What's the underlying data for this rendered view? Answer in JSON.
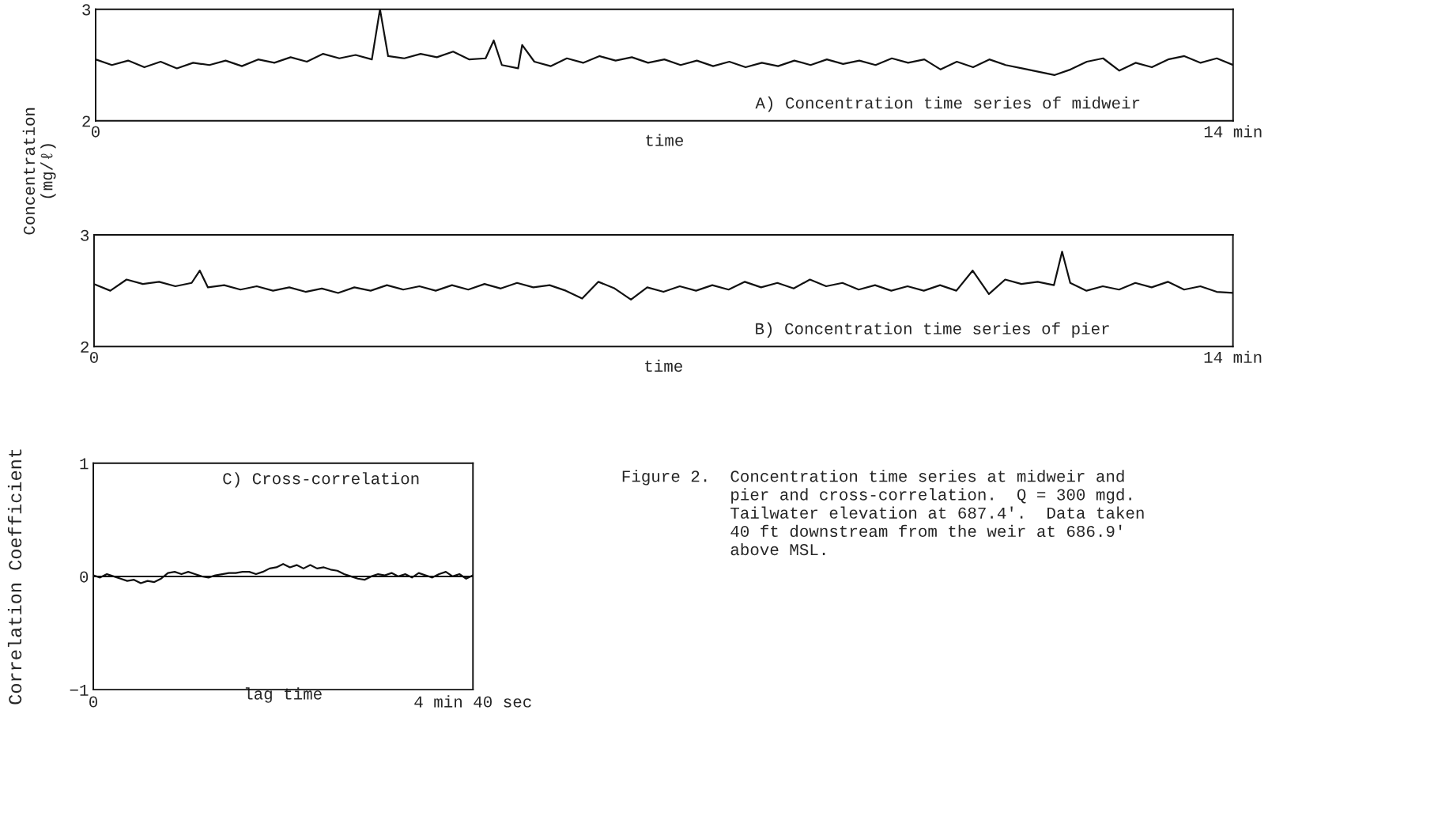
{
  "chart_data": [
    {
      "type": "line",
      "xlabel": "time",
      "ylabel": "Concentration\n(mg/ℓ)",
      "annotations": [
        "A) Concentration time series of midweir"
      ],
      "xlim": [
        0,
        14
      ],
      "xticks": [
        0,
        {
          "value": 14,
          "label": "14 min"
        }
      ],
      "ylim": [
        2,
        3
      ],
      "yticks": [
        2,
        3
      ],
      "grid": false,
      "legend": false,
      "marker": "none",
      "line_style": "solid",
      "series": [
        {
          "color": "#111111",
          "x": [
            0,
            0.2,
            0.4,
            0.6,
            0.8,
            1.0,
            1.2,
            1.4,
            1.6,
            1.8,
            2.0,
            2.2,
            2.4,
            2.6,
            2.8,
            3.0,
            3.2,
            3.4,
            3.5,
            3.6,
            3.8,
            4.0,
            4.2,
            4.4,
            4.6,
            4.8,
            4.9,
            5.0,
            5.2,
            5.25,
            5.4,
            5.6,
            5.8,
            6.0,
            6.2,
            6.4,
            6.6,
            6.8,
            7.0,
            7.2,
            7.4,
            7.6,
            7.8,
            8.0,
            8.2,
            8.4,
            8.6,
            8.8,
            9.0,
            9.2,
            9.4,
            9.6,
            9.8,
            10.0,
            10.2,
            10.4,
            10.6,
            10.8,
            11.0,
            11.2,
            11.4,
            11.6,
            11.8,
            12.0,
            12.2,
            12.4,
            12.6,
            12.8,
            13.0,
            13.2,
            13.4,
            13.6,
            13.8,
            14.0
          ],
          "values": [
            2.55,
            2.5,
            2.54,
            2.48,
            2.53,
            2.47,
            2.52,
            2.5,
            2.54,
            2.49,
            2.55,
            2.52,
            2.57,
            2.53,
            2.6,
            2.56,
            2.59,
            2.55,
            3.0,
            2.58,
            2.56,
            2.6,
            2.57,
            2.62,
            2.55,
            2.56,
            2.72,
            2.5,
            2.47,
            2.68,
            2.53,
            2.49,
            2.56,
            2.52,
            2.58,
            2.54,
            2.57,
            2.52,
            2.55,
            2.5,
            2.54,
            2.49,
            2.53,
            2.48,
            2.52,
            2.49,
            2.54,
            2.5,
            2.55,
            2.51,
            2.54,
            2.5,
            2.56,
            2.52,
            2.55,
            2.46,
            2.53,
            2.48,
            2.55,
            2.5,
            2.47,
            2.44,
            2.41,
            2.46,
            2.53,
            2.56,
            2.45,
            2.52,
            2.48,
            2.55,
            2.58,
            2.52,
            2.56,
            2.5
          ]
        }
      ]
    },
    {
      "type": "line",
      "xlabel": "time",
      "annotations": [
        "B) Concentration time series of pier"
      ],
      "xlim": [
        0,
        14
      ],
      "xticks": [
        0,
        {
          "value": 14,
          "label": "14 min"
        }
      ],
      "ylim": [
        2,
        3
      ],
      "yticks": [
        2,
        3
      ],
      "grid": false,
      "legend": false,
      "marker": "none",
      "line_style": "solid",
      "series": [
        {
          "color": "#111111",
          "x": [
            0,
            0.2,
            0.4,
            0.6,
            0.8,
            1.0,
            1.2,
            1.3,
            1.4,
            1.6,
            1.8,
            2.0,
            2.2,
            2.4,
            2.6,
            2.8,
            3.0,
            3.2,
            3.4,
            3.6,
            3.8,
            4.0,
            4.2,
            4.4,
            4.6,
            4.8,
            5.0,
            5.2,
            5.4,
            5.6,
            5.8,
            6.0,
            6.2,
            6.4,
            6.6,
            6.8,
            7.0,
            7.2,
            7.4,
            7.6,
            7.8,
            8.0,
            8.2,
            8.4,
            8.6,
            8.8,
            9.0,
            9.2,
            9.4,
            9.6,
            9.8,
            10.0,
            10.2,
            10.4,
            10.6,
            10.8,
            11.0,
            11.2,
            11.4,
            11.6,
            11.8,
            11.9,
            12.0,
            12.2,
            12.4,
            12.6,
            12.8,
            13.0,
            13.2,
            13.4,
            13.6,
            13.8,
            14.0
          ],
          "values": [
            2.56,
            2.5,
            2.6,
            2.56,
            2.58,
            2.54,
            2.57,
            2.68,
            2.53,
            2.55,
            2.51,
            2.54,
            2.5,
            2.53,
            2.49,
            2.52,
            2.48,
            2.53,
            2.5,
            2.55,
            2.51,
            2.54,
            2.5,
            2.55,
            2.51,
            2.56,
            2.52,
            2.57,
            2.53,
            2.55,
            2.5,
            2.43,
            2.58,
            2.52,
            2.42,
            2.53,
            2.49,
            2.54,
            2.5,
            2.55,
            2.51,
            2.58,
            2.53,
            2.57,
            2.52,
            2.6,
            2.54,
            2.57,
            2.51,
            2.55,
            2.5,
            2.54,
            2.5,
            2.55,
            2.5,
            2.68,
            2.47,
            2.6,
            2.56,
            2.58,
            2.55,
            2.85,
            2.57,
            2.5,
            2.54,
            2.51,
            2.57,
            2.53,
            2.58,
            2.51,
            2.54,
            2.49,
            2.48
          ]
        }
      ]
    },
    {
      "type": "line",
      "xlabel": "lag time",
      "ylabel": "Correlation Coefficient",
      "annotations": [
        "C) Cross-correlation",
        "0",
        "4 min 40 sec",
        "Figure 2.  Concentration time series at midweir and\n           pier and cross-correlation.  Q = 300 mgd.\n           Tailwater elevation at 687.4'.  Data taken\n           40 ft downstream from the weir at 686.9'\n           above MSL."
      ],
      "categories": [
        null,
        null,
        null,
        null,
        null,
        null,
        null,
        null,
        null,
        null,
        null,
        null,
        null,
        null,
        null,
        null,
        null,
        null,
        null,
        null,
        null,
        null,
        null,
        null,
        null,
        null,
        null,
        null,
        null,
        null,
        null,
        null,
        null,
        null,
        null,
        null,
        null,
        null,
        null,
        null,
        null,
        null,
        null,
        null,
        null,
        null,
        null,
        null,
        null,
        null,
        null,
        null,
        null,
        null,
        null,
        null,
        null
      ],
      "ylim": [
        -1,
        1
      ],
      "yticks": [
        {
          "value": -1,
          "label": "−1"
        },
        0,
        1
      ],
      "grid": false,
      "legend": false,
      "marker": "none",
      "line_style": "solid",
      "ref_lines": [
        {
          "axis": "y",
          "value": 0,
          "color": "#111111"
        }
      ],
      "series": [
        {
          "color": "#111111",
          "values": [
            0.01,
            -0.01,
            0.02,
            0.0,
            -0.02,
            -0.04,
            -0.03,
            -0.06,
            -0.04,
            -0.05,
            -0.02,
            0.03,
            0.04,
            0.02,
            0.04,
            0.02,
            0.0,
            -0.01,
            0.01,
            0.02,
            0.03,
            0.03,
            0.04,
            0.04,
            0.02,
            0.04,
            0.07,
            0.08,
            0.11,
            0.08,
            0.1,
            0.07,
            0.1,
            0.07,
            0.08,
            0.06,
            0.05,
            0.02,
            0.0,
            -0.02,
            -0.03,
            0.0,
            0.02,
            0.01,
            0.03,
            0.0,
            0.02,
            -0.01,
            0.03,
            0.01,
            -0.01,
            0.02,
            0.04,
            0.0,
            0.02,
            -0.02,
            0.01
          ]
        }
      ]
    }
  ]
}
